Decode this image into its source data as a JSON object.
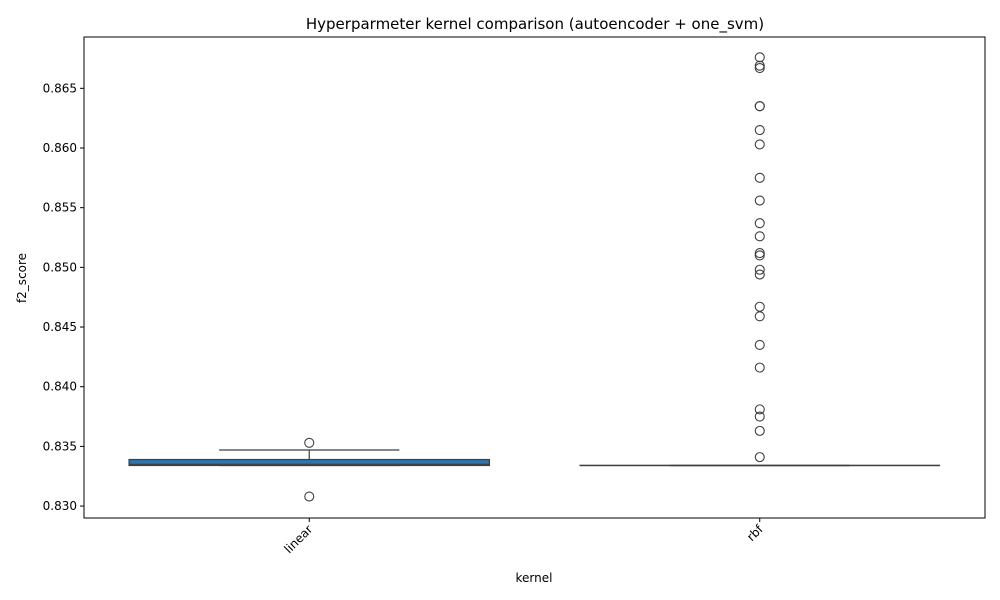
{
  "chart_data": {
    "type": "box",
    "title": "Hyperparmeter kernel comparison (autoencoder + one_svm)",
    "xlabel": "kernel",
    "ylabel": "f2_score",
    "categories": [
      "linear",
      "rbf"
    ],
    "ylim": [
      0.829,
      0.8693
    ],
    "yticks": [
      0.83,
      0.835,
      0.84,
      0.845,
      0.85,
      0.855,
      0.86,
      0.865
    ],
    "ytick_labels": [
      "0.830",
      "0.835",
      "0.840",
      "0.845",
      "0.850",
      "0.855",
      "0.860",
      "0.865"
    ],
    "box_color": "#2a77b4",
    "edge_color": "#3f3f3f",
    "grid": false,
    "legend": "none",
    "boxes": [
      {
        "category": "linear",
        "whisker_low": 0.8334,
        "q1": 0.8334,
        "median": 0.8335,
        "q3": 0.8339,
        "whisker_high": 0.8347,
        "outliers": [
          0.8353,
          0.8308
        ]
      },
      {
        "category": "rbf",
        "whisker_low": 0.8334,
        "q1": 0.8334,
        "median": 0.8334,
        "q3": 0.8334,
        "whisker_high": 0.8334,
        "outliers": [
          0.8676,
          0.8669,
          0.8667,
          0.8635,
          0.8635,
          0.8615,
          0.8603,
          0.8575,
          0.8556,
          0.8537,
          0.8526,
          0.8512,
          0.851,
          0.8498,
          0.8494,
          0.8467,
          0.8459,
          0.8435,
          0.8416,
          0.8381,
          0.8375,
          0.8363,
          0.8341
        ]
      }
    ]
  }
}
